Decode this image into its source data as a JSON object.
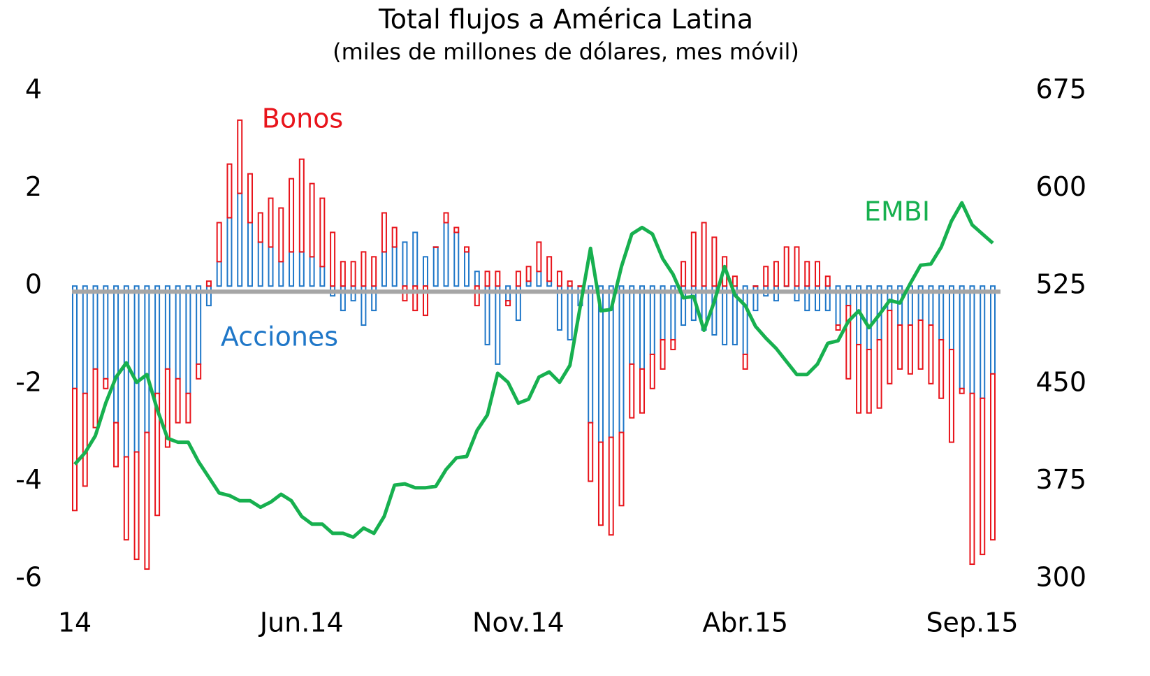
{
  "chart_data": {
    "type": "bar-line",
    "title": "Total flujos a América Latina",
    "subtitle": "(miles de millones de dólares, mes móvil)",
    "categories": [
      "14",
      null,
      null,
      null,
      null,
      null,
      null,
      null,
      null,
      null,
      null,
      null,
      null,
      null,
      null,
      null,
      null,
      null,
      null,
      null,
      null,
      null,
      "Jun.14",
      null,
      null,
      null,
      null,
      null,
      null,
      null,
      null,
      null,
      null,
      null,
      null,
      null,
      null,
      null,
      null,
      null,
      null,
      null,
      null,
      "Nov.14",
      null,
      null,
      null,
      null,
      null,
      null,
      null,
      null,
      null,
      null,
      null,
      null,
      null,
      null,
      null,
      null,
      null,
      null,
      null,
      null,
      null,
      "Abr.15",
      null,
      null,
      null,
      null,
      null,
      null,
      null,
      null,
      null,
      null,
      null,
      null,
      null,
      null,
      null,
      null,
      null,
      null,
      null,
      null,
      null,
      "Sep.15",
      null,
      null
    ],
    "series": [
      {
        "name": "Acciones",
        "color": "#1f77c8",
        "values": [
          -2.1,
          -2.2,
          -1.7,
          -1.9,
          -2.8,
          -3.5,
          -3.4,
          -3.0,
          -2.2,
          -1.7,
          -1.9,
          -2.2,
          -1.6,
          -0.4,
          0.5,
          1.4,
          1.9,
          1.3,
          0.9,
          0.8,
          0.5,
          0.7,
          0.7,
          0.6,
          0.4,
          -0.2,
          -0.5,
          -0.3,
          -0.8,
          -0.5,
          0.7,
          0.8,
          0.9,
          1.1,
          0.6,
          0.8,
          1.3,
          1.1,
          0.7,
          0.3,
          -1.2,
          -1.6,
          -0.3,
          -0.7,
          0.1,
          0.3,
          0.1,
          -0.9,
          -1.1,
          -0.4,
          -2.8,
          -3.2,
          -3.1,
          -3.0,
          -1.6,
          -1.7,
          -1.4,
          -1.1,
          -1.1,
          -0.8,
          -0.7,
          -0.9,
          -1.0,
          -1.2,
          -1.2,
          -1.4,
          -0.5,
          -0.2,
          -0.3,
          0.0,
          -0.3,
          -0.5,
          -0.5,
          -0.5,
          -0.8,
          -0.4,
          -1.2,
          -1.3,
          -1.1,
          -0.5,
          -0.8,
          -0.8,
          -0.7,
          -0.8,
          -1.1,
          -1.3,
          -2.1,
          -2.2,
          -2.3,
          -1.8
        ]
      },
      {
        "name": "Bonos",
        "color": "#e8141b",
        "values": [
          -2.5,
          -1.9,
          -1.2,
          -0.2,
          -0.9,
          -1.7,
          -2.2,
          -2.8,
          -2.5,
          -1.6,
          -0.9,
          -0.6,
          -0.3,
          0.1,
          0.8,
          1.1,
          1.5,
          1.0,
          0.6,
          1.0,
          1.1,
          1.5,
          1.9,
          1.5,
          1.4,
          1.1,
          0.5,
          0.5,
          0.7,
          0.6,
          0.8,
          0.4,
          -0.3,
          -0.5,
          -0.6,
          0.0,
          0.2,
          0.1,
          0.1,
          -0.4,
          0.3,
          0.3,
          -0.1,
          0.3,
          0.3,
          0.6,
          0.5,
          0.3,
          0.1,
          0.0,
          -1.2,
          -1.7,
          -2.0,
          -1.5,
          -1.1,
          -0.9,
          -0.7,
          -0.6,
          -0.2,
          0.5,
          1.1,
          1.3,
          1.0,
          0.6,
          0.2,
          -0.3,
          0.0,
          0.4,
          0.5,
          0.8,
          0.8,
          0.5,
          0.5,
          0.2,
          -0.1,
          -1.5,
          -1.4,
          -1.3,
          -1.4,
          -1.5,
          -0.9,
          -1.0,
          -1.0,
          -1.2,
          -1.2,
          -1.9,
          -0.1,
          -3.5,
          -3.2,
          -3.4
        ]
      },
      {
        "name": "EMBI",
        "color": "#17b04f",
        "axis": "y2",
        "values": [
          388,
          397,
          410,
          435,
          455,
          466,
          451,
          457,
          430,
          408,
          405,
          405,
          390,
          378,
          366,
          364,
          360,
          360,
          355,
          359,
          365,
          360,
          348,
          342,
          342,
          335,
          335,
          332,
          339,
          335,
          348,
          372,
          373,
          370,
          370,
          371,
          384,
          393,
          394,
          414,
          426,
          458,
          451,
          435,
          438,
          455,
          459,
          451,
          464,
          509,
          554,
          506,
          507,
          540,
          565,
          570,
          565,
          546,
          534,
          516,
          517,
          491,
          513,
          540,
          518,
          510,
          494,
          485,
          477,
          467,
          457,
          457,
          465,
          481,
          483,
          498,
          506,
          493,
          503,
          514,
          512,
          527,
          541,
          542,
          555,
          575,
          589,
          572,
          565,
          558
        ]
      }
    ],
    "ylim": [
      -6,
      4
    ],
    "yticks": [
      -6,
      -4,
      -2,
      0,
      2,
      4
    ],
    "y2lim": [
      300,
      675
    ],
    "y2ticks": [
      300,
      375,
      450,
      525,
      600,
      675
    ]
  }
}
